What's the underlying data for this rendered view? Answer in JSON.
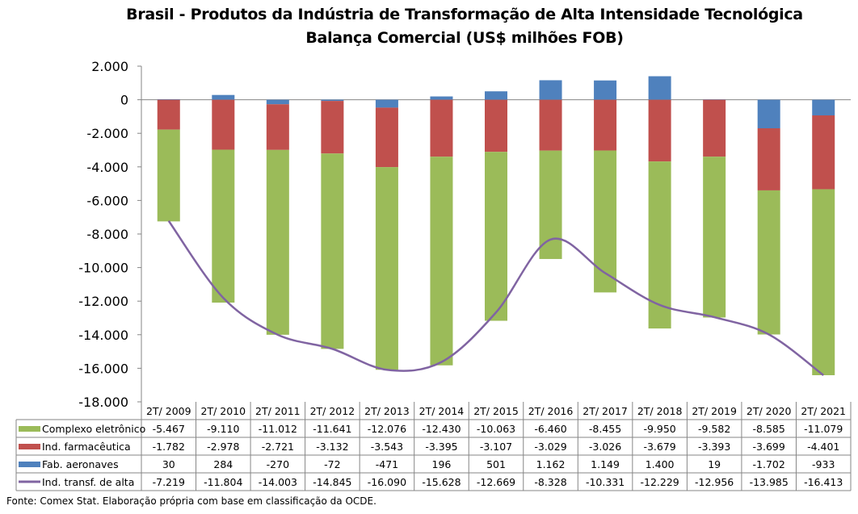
{
  "chart_data": {
    "type": "bar",
    "stacked": true,
    "title": "Brasil - Produtos da Indústria de Transformação de Alta Intensidade Tecnológica",
    "subtitle": "Balança Comercial (US$ milhões FOB)",
    "categories": [
      "2T/ 2009",
      "2T/ 2010",
      "2T/ 2011",
      "2T/ 2012",
      "2T/ 2013",
      "2T/ 2014",
      "2T/ 2015",
      "2T/ 2016",
      "2T/ 2017",
      "2T/ 2018",
      "2T/ 2019",
      "2T/ 2020",
      "2T/ 2021"
    ],
    "ylim": [
      -18000,
      2000
    ],
    "yticks": [
      2000,
      0,
      -2000,
      -4000,
      -6000,
      -8000,
      -10000,
      -12000,
      -14000,
      -16000,
      -18000
    ],
    "ytick_labels": [
      "2.000",
      "0",
      "-2.000",
      "-4.000",
      "-6.000",
      "-8.000",
      "-10.000",
      "-12.000",
      "-14.000",
      "-16.000",
      "-18.000"
    ],
    "grid": false,
    "legend": "data-table",
    "series": [
      {
        "name": "Complexo eletrônico",
        "type": "bar",
        "color": "#9BBB59",
        "values": [
          -5467,
          -9110,
          -11012,
          -11641,
          -12076,
          -12430,
          -10063,
          -6460,
          -8455,
          -9950,
          -9582,
          -8585,
          -11079
        ],
        "labels": [
          "-5.467",
          "-9.110",
          "-11.012",
          "-11.641",
          "-12.076",
          "-12.430",
          "-10.063",
          "-6.460",
          "-8.455",
          "-9.950",
          "-9.582",
          "-8.585",
          "-11.079"
        ]
      },
      {
        "name": "Ind. farmacêutica",
        "type": "bar",
        "color": "#C0504D",
        "values": [
          -1782,
          -2978,
          -2721,
          -3132,
          -3543,
          -3395,
          -3107,
          -3029,
          -3026,
          -3679,
          -3393,
          -3699,
          -4401
        ],
        "labels": [
          "-1.782",
          "-2.978",
          "-2.721",
          "-3.132",
          "-3.543",
          "-3.395",
          "-3.107",
          "-3.029",
          "-3.026",
          "-3.679",
          "-3.393",
          "-3.699",
          "-4.401"
        ]
      },
      {
        "name": "Fab. aeronaves",
        "type": "bar",
        "color": "#4F81BD",
        "values": [
          30,
          284,
          -270,
          -72,
          -471,
          196,
          501,
          1162,
          1149,
          1400,
          19,
          -1702,
          -933
        ],
        "labels": [
          "30",
          "284",
          "-270",
          "-72",
          "-471",
          "196",
          "501",
          "1.162",
          "1.149",
          "1.400",
          "19",
          "-1.702",
          "-933"
        ]
      },
      {
        "name": "Ind. transf. de alta",
        "type": "line",
        "smooth": true,
        "color": "#8064A2",
        "values": [
          -7219,
          -11804,
          -14003,
          -14845,
          -16090,
          -15628,
          -12669,
          -8328,
          -10331,
          -12229,
          -12956,
          -13985,
          -16413
        ],
        "labels": [
          "-7.219",
          "-11.804",
          "-14.003",
          "-14.845",
          "-16.090",
          "-15.628",
          "-12.669",
          "-8.328",
          "-10.331",
          "-12.229",
          "-12.956",
          "-13.985",
          "-16.413"
        ]
      }
    ]
  },
  "source": "Fonte: Comex Stat. Elaboração própria com base em classificação da OCDE."
}
